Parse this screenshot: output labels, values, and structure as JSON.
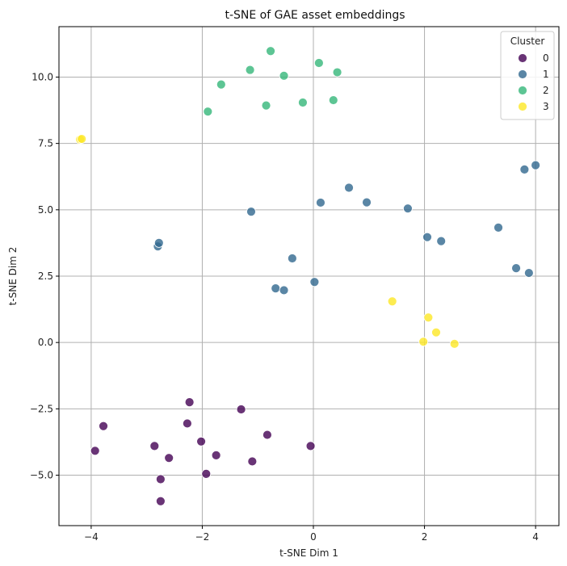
{
  "chart_data": {
    "type": "scatter",
    "title": "t-SNE of GAE asset embeddings",
    "xlabel": "t-SNE Dim 1",
    "ylabel": "t-SNE Dim 2",
    "xlim": [
      -4.58,
      4.42
    ],
    "ylim": [
      -6.9,
      11.9
    ],
    "xticks": [
      -4,
      -2,
      0,
      2,
      4
    ],
    "xtick_labels": [
      "−4",
      "−2",
      "0",
      "2",
      "4"
    ],
    "yticks": [
      -5.0,
      -2.5,
      0.0,
      2.5,
      5.0,
      7.5,
      10.0
    ],
    "ytick_labels": [
      "−5.0",
      "−2.5",
      "0.0",
      "2.5",
      "5.0",
      "7.5",
      "10.0"
    ],
    "grid": true,
    "legend": {
      "title": "Cluster",
      "position": "top-right"
    },
    "series": [
      {
        "name": "0",
        "color": "#440154",
        "points": [
          [
            -3.78,
            -3.15
          ],
          [
            -3.93,
            -4.08
          ],
          [
            -2.86,
            -3.9
          ],
          [
            -2.6,
            -4.35
          ],
          [
            -2.75,
            -5.15
          ],
          [
            -2.75,
            -5.98
          ],
          [
            -2.27,
            -3.05
          ],
          [
            -2.23,
            -2.25
          ],
          [
            -2.02,
            -3.73
          ],
          [
            -1.93,
            -4.95
          ],
          [
            -1.75,
            -4.25
          ],
          [
            -1.3,
            -2.52
          ],
          [
            -1.1,
            -4.48
          ],
          [
            -0.83,
            -3.48
          ],
          [
            -0.05,
            -3.9
          ]
        ]
      },
      {
        "name": "1",
        "color": "#31688e",
        "points": [
          [
            -2.8,
            3.62
          ],
          [
            -2.78,
            3.75
          ],
          [
            -1.12,
            4.93
          ],
          [
            -0.38,
            3.17
          ],
          [
            -0.68,
            2.04
          ],
          [
            -0.53,
            1.97
          ],
          [
            0.02,
            2.28
          ],
          [
            0.13,
            5.27
          ],
          [
            0.64,
            5.83
          ],
          [
            0.96,
            5.28
          ],
          [
            1.7,
            5.05
          ],
          [
            2.05,
            3.97
          ],
          [
            2.3,
            3.82
          ],
          [
            3.33,
            4.33
          ],
          [
            3.65,
            2.8
          ],
          [
            3.88,
            2.62
          ],
          [
            3.8,
            6.52
          ],
          [
            4.0,
            6.68
          ]
        ]
      },
      {
        "name": "2",
        "color": "#35b779",
        "points": [
          [
            -1.9,
            8.7
          ],
          [
            -1.66,
            9.72
          ],
          [
            -1.14,
            10.27
          ],
          [
            -0.85,
            8.93
          ],
          [
            -0.77,
            10.98
          ],
          [
            -0.53,
            10.05
          ],
          [
            -0.19,
            9.04
          ],
          [
            0.1,
            10.53
          ],
          [
            0.36,
            9.13
          ],
          [
            0.43,
            10.18
          ]
        ]
      },
      {
        "name": "3",
        "color": "#fde725",
        "points": [
          [
            -4.2,
            7.65
          ],
          [
            -4.17,
            7.67
          ],
          [
            1.42,
            1.55
          ],
          [
            2.07,
            0.94
          ],
          [
            2.21,
            0.38
          ],
          [
            1.98,
            0.03
          ],
          [
            2.54,
            -0.05
          ]
        ]
      }
    ]
  }
}
